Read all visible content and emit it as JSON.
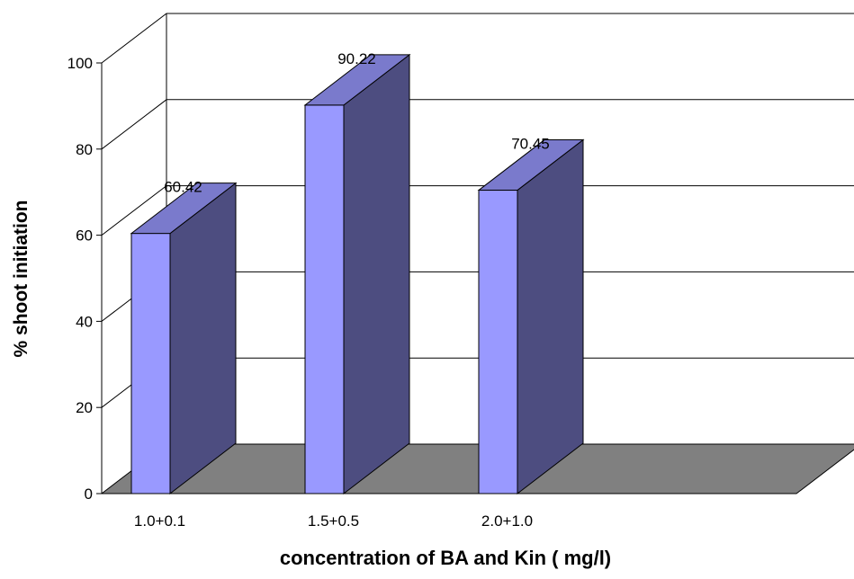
{
  "chart_data": {
    "type": "bar",
    "categories": [
      "1.0+0.1",
      "1.5+0.5",
      "2.0+1.0"
    ],
    "values": [
      60.42,
      90.22,
      70.45
    ],
    "data_labels": [
      "60.42",
      "90.22",
      "70.45"
    ],
    "title": "",
    "xlabel": "concentration of BA and Kin ( mg/l)",
    "ylabel": "% shoot initiation",
    "ylim": [
      0,
      100
    ],
    "yticks": [
      "0",
      "20",
      "40",
      "60",
      "80",
      "100"
    ],
    "grid": true,
    "legend": "none",
    "style": "3d",
    "colors": {
      "bar_front": "#9999ff",
      "bar_side": "#4d4d80",
      "bar_top": "#7a7acc",
      "floor": "#808080",
      "gridline": "#000000"
    }
  }
}
